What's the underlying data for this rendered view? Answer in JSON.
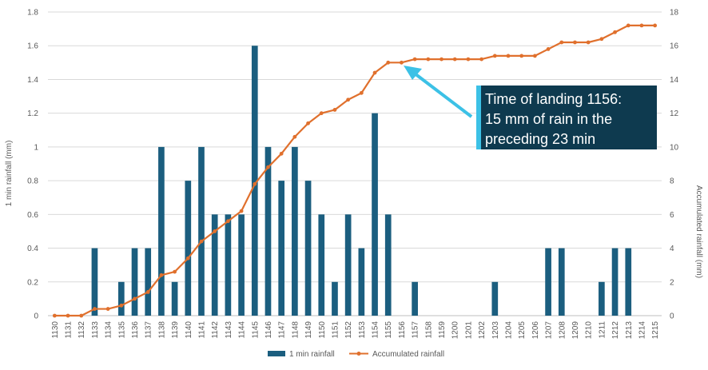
{
  "chart_data": {
    "type": "bar",
    "categories": [
      "1130",
      "1131",
      "1132",
      "1133",
      "1134",
      "1135",
      "1136",
      "1137",
      "1138",
      "1139",
      "1140",
      "1141",
      "1142",
      "1143",
      "1144",
      "1145",
      "1146",
      "1147",
      "1148",
      "1149",
      "1150",
      "1151",
      "1152",
      "1153",
      "1154",
      "1155",
      "1156",
      "1157",
      "1158",
      "1159",
      "1200",
      "1201",
      "1202",
      "1203",
      "1204",
      "1205",
      "1206",
      "1207",
      "1208",
      "1209",
      "1210",
      "1211",
      "1212",
      "1213",
      "1214",
      "1215"
    ],
    "series": [
      {
        "name": "1 min rainfall",
        "type": "bar",
        "axis": "left",
        "color": "#1b5e7f",
        "values": [
          0,
          0,
          0,
          0.4,
          0,
          0.2,
          0.4,
          0.4,
          1.0,
          0.2,
          0.8,
          1.0,
          0.6,
          0.6,
          0.6,
          1.6,
          1.0,
          0.8,
          1.0,
          0.8,
          0.6,
          0.2,
          0.6,
          0.4,
          1.2,
          0.6,
          0,
          0.2,
          0,
          0,
          0,
          0,
          0,
          0.2,
          0,
          0,
          0,
          0.4,
          0.4,
          0,
          0,
          0.2,
          0.4,
          0.4,
          0,
          0
        ]
      },
      {
        "name": "Accumulated rainfall",
        "type": "line",
        "axis": "right",
        "color": "#e0702d",
        "values": [
          0,
          0,
          0,
          0.4,
          0.4,
          0.6,
          1.0,
          1.4,
          2.4,
          2.6,
          3.4,
          4.4,
          5.0,
          5.6,
          6.2,
          7.8,
          8.8,
          9.6,
          10.6,
          11.4,
          12.0,
          12.2,
          12.8,
          13.2,
          14.4,
          15.0,
          15.0,
          15.2,
          15.2,
          15.2,
          15.2,
          15.2,
          15.2,
          15.4,
          15.4,
          15.4,
          15.4,
          15.8,
          16.2,
          16.2,
          16.2,
          16.4,
          16.8,
          17.2,
          17.2,
          17.2
        ]
      }
    ],
    "title": "",
    "ylabel": "1 min rainfall (mm)",
    "y2label": "Accumulated rainfall (mm)",
    "ylim": [
      0,
      1.8
    ],
    "y2lim": [
      0,
      18
    ],
    "yticks": [
      "0",
      "0.2",
      "0.4",
      "0.6",
      "0.8",
      "1",
      "1.2",
      "1.4",
      "1.6",
      "1.8"
    ],
    "y2ticks": [
      "0",
      "2",
      "4",
      "6",
      "8",
      "10",
      "12",
      "14",
      "16",
      "18"
    ],
    "grid": true,
    "legend_position": "bottom",
    "annotation": {
      "lines": [
        "Time of landing 1156:",
        "15 mm of rain in the",
        "preceding 23 min"
      ],
      "target_category": "1156",
      "box_color": "#0e3a4f",
      "accent_color": "#3cc1e6",
      "arrow_color": "#3cc1e6"
    }
  }
}
